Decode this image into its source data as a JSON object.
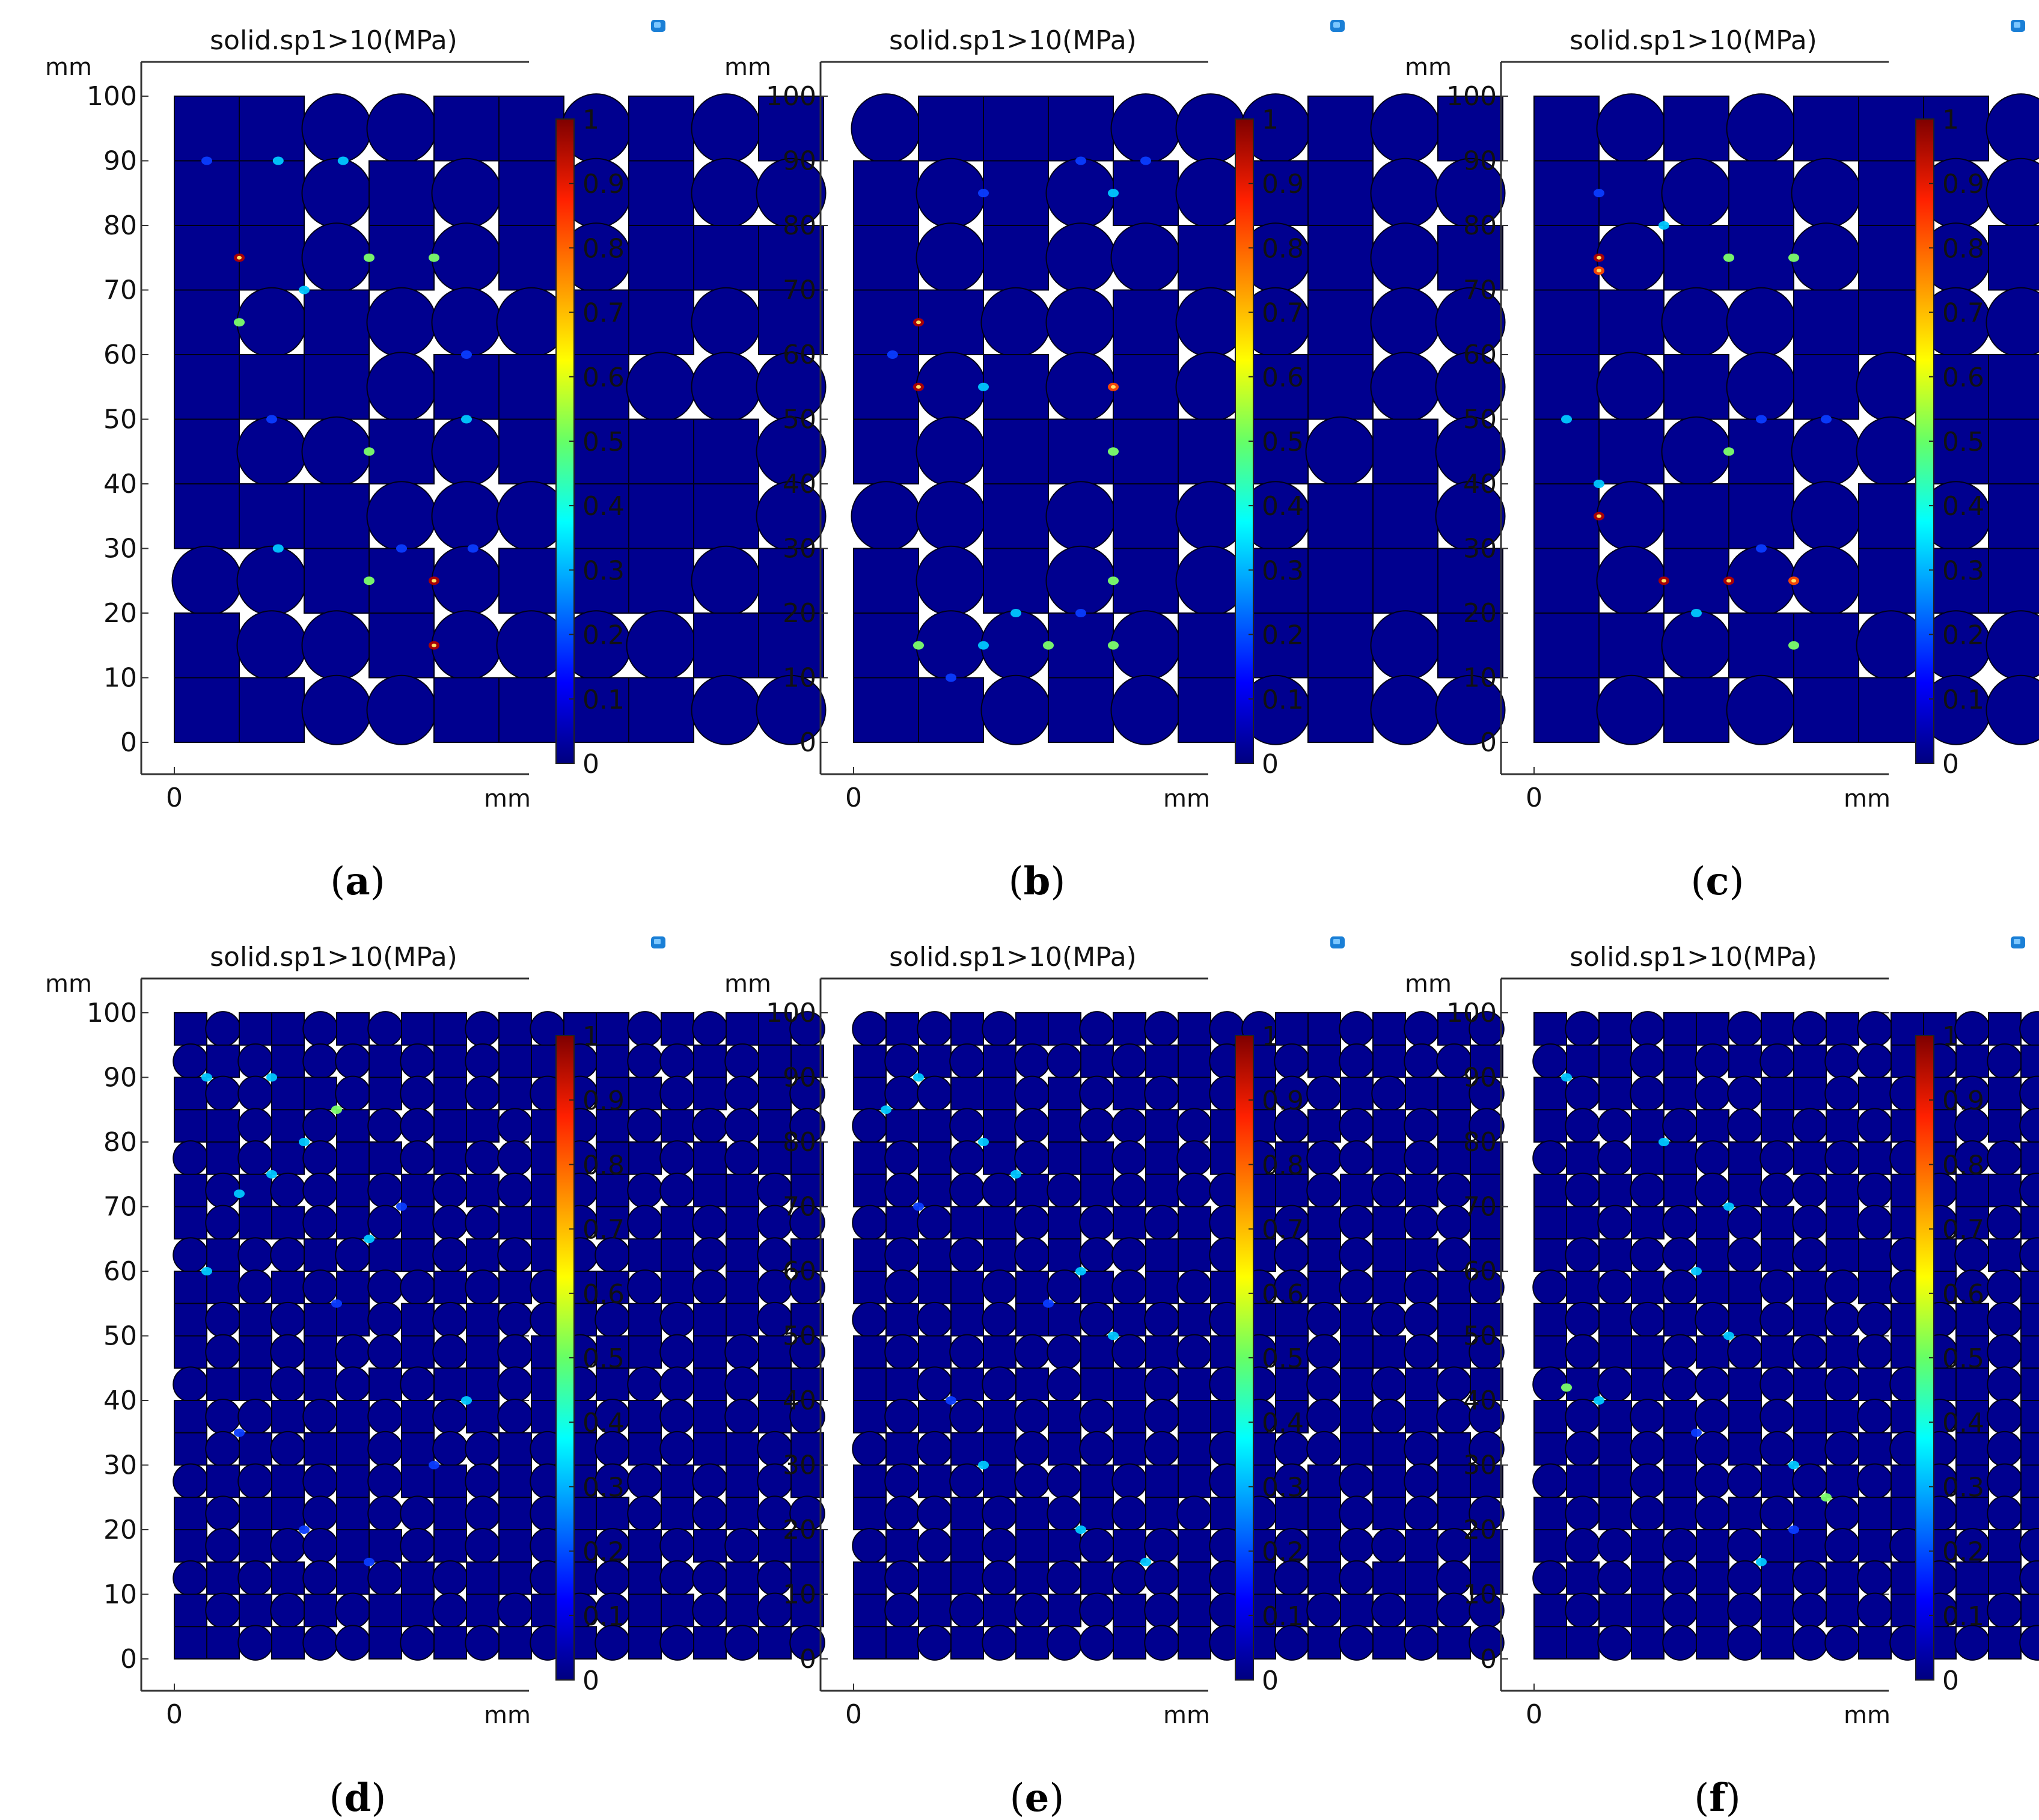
{
  "colors": {
    "field": "#00008f",
    "seam": "#000018",
    "hot": [
      "#0a3cff",
      "#00c8ff",
      "#7dff6a",
      "#ffd000",
      "#ff4a00",
      "#b00000"
    ],
    "axis": "#333333",
    "corner_icon": [
      "#1a7fd6",
      "#7cc7ff",
      "#ffffff"
    ]
  },
  "icon_name": "rendering-box-icon",
  "panel_rows": [
    [
      "a",
      "b",
      "c"
    ],
    [
      "d",
      "e",
      "f"
    ]
  ],
  "chart_data": [
    {
      "type": "heatmap",
      "id": "a",
      "caption_open": "(",
      "caption_letter": "a",
      "caption_close": ")",
      "title": "solid.sp1>10(MPa)",
      "y_unit": "mm",
      "x_unit": "mm",
      "x_ticks": [
        "0"
      ],
      "y_ticks": [
        "0",
        "10",
        "20",
        "30",
        "40",
        "50",
        "60",
        "70",
        "80",
        "90",
        "100"
      ],
      "ylim": [
        0,
        100
      ],
      "x_extent_mm": 50,
      "cell_size_mm": 10,
      "grid": [
        "##..##.#.#",
        "##.#.#.#..",
        "##.#.#.###",
        "#.#...##.#",
        "###.###...",
        "#..#.####.",
        "###...###.",
        "..##.###.#",
        "#..#....##",
        "##..####.."
      ],
      "hotspots": [
        {
          "x": 10,
          "y": 75,
          "v": 0.95
        },
        {
          "x": 10,
          "y": 65,
          "v": 0.45
        },
        {
          "x": 30,
          "y": 75,
          "v": 0.5
        },
        {
          "x": 20,
          "y": 70,
          "v": 0.35
        },
        {
          "x": 40,
          "y": 75,
          "v": 0.45
        },
        {
          "x": 5,
          "y": 90,
          "v": 0.3
        },
        {
          "x": 16,
          "y": 90,
          "v": 0.35
        },
        {
          "x": 26,
          "y": 90,
          "v": 0.35
        },
        {
          "x": 15,
          "y": 50,
          "v": 0.3
        },
        {
          "x": 30,
          "y": 45,
          "v": 0.5
        },
        {
          "x": 45,
          "y": 50,
          "v": 0.35
        },
        {
          "x": 40,
          "y": 25,
          "v": 0.95
        },
        {
          "x": 40,
          "y": 15,
          "v": 0.95
        },
        {
          "x": 30,
          "y": 25,
          "v": 0.5
        },
        {
          "x": 16,
          "y": 30,
          "v": 0.35
        },
        {
          "x": 35,
          "y": 30,
          "v": 0.3
        },
        {
          "x": 46,
          "y": 30,
          "v": 0.3
        },
        {
          "x": 45,
          "y": 60,
          "v": 0.3
        }
      ],
      "colorbar": {
        "min": 0,
        "max": 1,
        "ticks": [
          "0",
          "0.1",
          "0.2",
          "0.3",
          "0.4",
          "0.5",
          "0.6",
          "0.7",
          "0.8",
          "0.9",
          "1"
        ]
      }
    },
    {
      "type": "heatmap",
      "id": "b",
      "caption_open": "(",
      "caption_letter": "b",
      "caption_close": ")",
      "title": "solid.sp1>10(MPa)",
      "y_unit": "mm",
      "x_unit": "mm",
      "x_ticks": [
        "0"
      ],
      "y_ticks": [
        "0",
        "10",
        "20",
        "30",
        "40",
        "50",
        "60",
        "70",
        "80",
        "90",
        "100"
      ],
      "ylim": [
        0,
        100
      ],
      "x_extent_mm": 50,
      "cell_size_mm": 10,
      "grid": [
        ".###...#.#",
        "#.#.#.##..",
        "#.#..#.#.#",
        "##..#..#..",
        "#.#.#.##..",
        "#.#####.#.",
        "..#.#..##.",
        "#.#.#.####",
        "#..#.###.#",
        "##.#.#.#.."
      ],
      "hotspots": [
        {
          "x": 10,
          "y": 65,
          "v": 0.98
        },
        {
          "x": 10,
          "y": 55,
          "v": 0.98
        },
        {
          "x": 20,
          "y": 55,
          "v": 0.35
        },
        {
          "x": 40,
          "y": 55,
          "v": 0.85
        },
        {
          "x": 40,
          "y": 45,
          "v": 0.55
        },
        {
          "x": 6,
          "y": 60,
          "v": 0.3
        },
        {
          "x": 20,
          "y": 85,
          "v": 0.3
        },
        {
          "x": 35,
          "y": 90,
          "v": 0.3
        },
        {
          "x": 45,
          "y": 90,
          "v": 0.3
        },
        {
          "x": 40,
          "y": 85,
          "v": 0.35
        },
        {
          "x": 40,
          "y": 25,
          "v": 0.55
        },
        {
          "x": 10,
          "y": 15,
          "v": 0.55
        },
        {
          "x": 20,
          "y": 15,
          "v": 0.35
        },
        {
          "x": 25,
          "y": 20,
          "v": 0.35
        },
        {
          "x": 30,
          "y": 15,
          "v": 0.55
        },
        {
          "x": 35,
          "y": 20,
          "v": 0.3
        },
        {
          "x": 40,
          "y": 15,
          "v": 0.55
        },
        {
          "x": 15,
          "y": 10,
          "v": 0.3
        }
      ],
      "colorbar": {
        "min": 0,
        "max": 1,
        "ticks": [
          "0",
          "0.1",
          "0.2",
          "0.3",
          "0.4",
          "0.5",
          "0.6",
          "0.7",
          "0.8",
          "0.9",
          "1"
        ]
      }
    },
    {
      "type": "heatmap",
      "id": "c",
      "caption_open": "(",
      "caption_letter": "c",
      "caption_close": ")",
      "title": "solid.sp1>10(MPa)",
      "y_unit": "mm",
      "x_unit": "mm",
      "x_ticks": [
        "0"
      ],
      "y_ticks": [
        "0",
        "10",
        "20",
        "30",
        "40",
        "50",
        "60",
        "70",
        "80",
        "90",
        "100"
      ],
      "ylim": [
        0,
        100
      ],
      "x_extent_mm": 50,
      "cell_size_mm": 10,
      "grid": [
        "#.#.###..#",
        "##.#.#..#.",
        "#.##.#.#.#",
        "##..##..#.",
        "#.#.#.##..",
        "##.#..##.#",
        "#.##.#.#.#",
        "#.#..###..",
        "##.##...##",
        "#.#.##..#."
      ],
      "hotspots": [
        {
          "x": 10,
          "y": 75,
          "v": 0.95
        },
        {
          "x": 10,
          "y": 73,
          "v": 0.85
        },
        {
          "x": 20,
          "y": 80,
          "v": 0.35
        },
        {
          "x": 30,
          "y": 75,
          "v": 0.55
        },
        {
          "x": 40,
          "y": 75,
          "v": 0.45
        },
        {
          "x": 10,
          "y": 85,
          "v": 0.3
        },
        {
          "x": 5,
          "y": 50,
          "v": 0.35
        },
        {
          "x": 10,
          "y": 40,
          "v": 0.35
        },
        {
          "x": 10,
          "y": 35,
          "v": 0.9
        },
        {
          "x": 30,
          "y": 45,
          "v": 0.55
        },
        {
          "x": 20,
          "y": 25,
          "v": 0.98
        },
        {
          "x": 30,
          "y": 25,
          "v": 0.95
        },
        {
          "x": 40,
          "y": 25,
          "v": 0.85
        },
        {
          "x": 25,
          "y": 20,
          "v": 0.35
        },
        {
          "x": 35,
          "y": 30,
          "v": 0.3
        },
        {
          "x": 40,
          "y": 15,
          "v": 0.5
        },
        {
          "x": 45,
          "y": 50,
          "v": 0.3
        },
        {
          "x": 35,
          "y": 50,
          "v": 0.3
        }
      ],
      "colorbar": {
        "min": 0,
        "max": 1,
        "ticks": [
          "0",
          "0.1",
          "0.2",
          "0.3",
          "0.4",
          "0.5",
          "0.6",
          "0.7",
          "0.8",
          "0.9",
          "1"
        ]
      }
    },
    {
      "type": "heatmap",
      "id": "d",
      "caption_open": "(",
      "caption_letter": "d",
      "caption_close": ")",
      "title": "solid.sp1>10(MPa)",
      "y_unit": "mm",
      "x_unit": "mm",
      "x_ticks": [
        "0"
      ],
      "y_ticks": [
        "0",
        "10",
        "20",
        "30",
        "40",
        "50",
        "60",
        "70",
        "80",
        "90",
        "100"
      ],
      "ylim": [
        0,
        100
      ],
      "x_extent_mm": 50,
      "cell_size_mm": 5,
      "grid": [
        "#.##.#.##.#.##.#.##.",
        ".#.#..#.#.##.#..#.##",
        "#..##.#.#.#..##.#.#.",
        "##.#.#..##.#.#.#..#.",
        ".#.#.##.#..#.##.#.##",
        "#.#..#.#.#.#.#..##.#",
        "#.##.#.#..##.#.#.#..",
        ".#..#.##.#.#..##.#.#",
        "##.#.#..#.#.##.#.#..",
        "#.#.##.#.#..#.#.##.#",
        "#.#.#..#.#.#.##.#.#.",
        ".##.#.#.##.#.#..#.##",
        "#..#.#.#.#.##.#.#.#.",
        "#.#.##.#..#.#.#.##.#",
        ".#.#.#.##.#.#..#.#.#",
        "#.##.#..#.#.##.#.#..",
        "#.#..##.#.#.#.#.#.##",
        ".#.#.#.#.##.#.#..#.#",
        "#.#.#.##.#.#..##.#.#",
        "##.#..#.#.#.#.#.#.#."
      ],
      "hotspots": [
        {
          "x": 5,
          "y": 90,
          "v": 0.35
        },
        {
          "x": 15,
          "y": 90,
          "v": 0.4
        },
        {
          "x": 25,
          "y": 85,
          "v": 0.45
        },
        {
          "x": 20,
          "y": 80,
          "v": 0.4
        },
        {
          "x": 15,
          "y": 75,
          "v": 0.4
        },
        {
          "x": 10,
          "y": 72,
          "v": 0.35
        },
        {
          "x": 35,
          "y": 70,
          "v": 0.3
        },
        {
          "x": 30,
          "y": 65,
          "v": 0.35
        },
        {
          "x": 5,
          "y": 60,
          "v": 0.35
        },
        {
          "x": 25,
          "y": 55,
          "v": 0.3
        },
        {
          "x": 45,
          "y": 40,
          "v": 0.35
        },
        {
          "x": 40,
          "y": 30,
          "v": 0.3
        },
        {
          "x": 10,
          "y": 35,
          "v": 0.3
        },
        {
          "x": 20,
          "y": 20,
          "v": 0.3
        },
        {
          "x": 30,
          "y": 15,
          "v": 0.3
        }
      ],
      "colorbar": {
        "min": 0,
        "max": 1,
        "ticks": [
          "0",
          "0.1",
          "0.2",
          "0.3",
          "0.4",
          "0.5",
          "0.6",
          "0.7",
          "0.8",
          "0.9",
          "1"
        ]
      }
    },
    {
      "type": "heatmap",
      "id": "e",
      "caption_open": "(",
      "caption_letter": "e",
      "caption_close": ")",
      "title": "solid.sp1>10(MPa)",
      "y_unit": "mm",
      "x_unit": "mm",
      "x_ticks": [
        "0"
      ],
      "y_ticks": [
        "0",
        "10",
        "20",
        "30",
        "40",
        "50",
        "60",
        "70",
        "80",
        "90",
        "100"
      ],
      "ylim": [
        0,
        100
      ],
      "x_extent_mm": 50,
      "cell_size_mm": 5,
      "grid": [
        ".#.#.##.#.#..##.#.#.",
        "#.#.#..#.##.#.#.#..#",
        "#..##.#.#.#.#..#.##.",
        ".##.#.#..#.##.#.#.#.",
        "#.#.#.##.#.#.#..#.##",
        "#.#..#.#.#..##.#.#.#",
        ".#.##.#.#.#.#.#.#..#",
        "#.#.#.#..##.#.#.##.#",
        "#.##.#.#.#.#..#.#.#.",
        ".#.#.##.#.#.##.#..##",
        "#.#.#..#.#.#.#.##.#.",
        "##.#.#.##.#..#.#.#.#",
        "#.#.#.#.#.##.#.#.#..",
        ".#.##.#.#.#.#..##.#.",
        "#.#.#..#.##.#.#.#.##",
        "#..#.#.#.#.#.##.#.#.",
        ".#.#.##.#.#.#.#..#.#",
        "#.##.#.#..#.#.#.##.#",
        "#.#.#.#.#.#.##.#.#..",
        "##.#.#..#.#.#.#.#.#."
      ],
      "hotspots": [
        {
          "x": 5,
          "y": 85,
          "v": 0.4
        },
        {
          "x": 10,
          "y": 90,
          "v": 0.35
        },
        {
          "x": 20,
          "y": 80,
          "v": 0.35
        },
        {
          "x": 25,
          "y": 75,
          "v": 0.4
        },
        {
          "x": 35,
          "y": 60,
          "v": 0.35
        },
        {
          "x": 40,
          "y": 50,
          "v": 0.4
        },
        {
          "x": 30,
          "y": 55,
          "v": 0.3
        },
        {
          "x": 20,
          "y": 30,
          "v": 0.4
        },
        {
          "x": 35,
          "y": 20,
          "v": 0.4
        },
        {
          "x": 45,
          "y": 15,
          "v": 0.35
        },
        {
          "x": 15,
          "y": 40,
          "v": 0.3
        },
        {
          "x": 10,
          "y": 70,
          "v": 0.3
        }
      ],
      "colorbar": {
        "min": 0,
        "max": 1,
        "ticks": [
          "0",
          "0.1",
          "0.2",
          "0.3",
          "0.4",
          "0.5",
          "0.6",
          "0.7",
          "0.8",
          "0.9",
          "1"
        ]
      }
    },
    {
      "type": "heatmap",
      "id": "f",
      "caption_open": "(",
      "caption_letter": "f",
      "caption_close": ")",
      "title": "solid.sp1>10(MPa)",
      "y_unit": "mm",
      "x_unit": "mm",
      "x_ticks": [
        "0"
      ],
      "y_ticks": [
        "0",
        "10",
        "20",
        "30",
        "40",
        "50",
        "60",
        "70",
        "80",
        "90",
        "100"
      ],
      "ylim": [
        0,
        100
      ],
      "x_extent_mm": 50,
      "cell_size_mm": 5,
      "grid": [
        "#.#.##.#.#.##.#.#.#.",
        ".##.#.#.#..#.#.##.#.",
        "#.#.#..##.#.#.#..#.#",
        "#..#.#.#.#.##.#.#.#.",
        ".#.##.#.#.#.#..#.#.#",
        "#.#.#.#..#.#.##.#.#.",
        "##.#.#.#.#.#.#.#..##",
        "#.#..#.#.##.#.#.#.#.",
        ".#.#.##.#.#.#..#.#.#",
        "#.#.#.#.#..#.#.##.#.",
        "#.##.#.#.#.#.#.#.#.#",
        ".#.#..#.#.#.##.#.#..",
        "#.#.#.#.##.#.#.#..#.",
        "#.#.#.#.#.#..#.#.##.",
        ".##.#..#.#.#.#.#.#.#",
        "#.#.#.#.#.##.#.#.#..",
        "#..#.#.##.#.#.#..#.#",
        ".#.#.#.#.#.#.##.#.#.",
        "#.##.#.#.#.#.#.#.#.#",
        "##.#.#.#..#.#.#.#.#."
      ],
      "hotspots": [
        {
          "x": 5,
          "y": 90,
          "v": 0.35
        },
        {
          "x": 20,
          "y": 80,
          "v": 0.35
        },
        {
          "x": 30,
          "y": 70,
          "v": 0.4
        },
        {
          "x": 25,
          "y": 60,
          "v": 0.35
        },
        {
          "x": 30,
          "y": 50,
          "v": 0.4
        },
        {
          "x": 5,
          "y": 42,
          "v": 0.45
        },
        {
          "x": 10,
          "y": 40,
          "v": 0.35
        },
        {
          "x": 25,
          "y": 35,
          "v": 0.3
        },
        {
          "x": 40,
          "y": 30,
          "v": 0.4
        },
        {
          "x": 45,
          "y": 25,
          "v": 0.45
        },
        {
          "x": 35,
          "y": 15,
          "v": 0.35
        },
        {
          "x": 40,
          "y": 20,
          "v": 0.3
        }
      ],
      "colorbar": {
        "min": 0,
        "max": 1,
        "ticks": [
          "0",
          "0.1",
          "0.2",
          "0.3",
          "0.4",
          "0.5",
          "0.6",
          "0.7",
          "0.8",
          "0.9",
          "1"
        ]
      }
    }
  ]
}
